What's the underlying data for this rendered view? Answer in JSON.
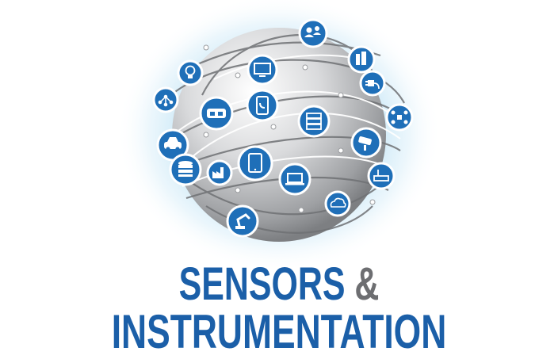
{
  "title": {
    "line1_word": "SENSORS",
    "ampersand": "&",
    "line2": "INSTRUMENTATION"
  },
  "colors": {
    "brand_blue": "#1b5fa8",
    "ampersand_gray": "#6d6e71",
    "globe_gray": "#c9cacc",
    "glow": "#bfe3f5",
    "icon_fill": "#1f6fb8",
    "icon_ring": "#ffffff"
  },
  "icons": [
    "people-icon",
    "buildings-icon",
    "monitor-icon",
    "lightbulb-icon",
    "plug-icon",
    "network-nodes-icon",
    "vr-headset-icon",
    "smartphone-icon",
    "server-icon",
    "drone-icon",
    "autonomous-car-icon",
    "security-camera-icon",
    "database-icon",
    "factory-icon",
    "tablet-icon",
    "laptop-icon",
    "router-icon",
    "cloud-icon",
    "robot-arm-icon"
  ]
}
